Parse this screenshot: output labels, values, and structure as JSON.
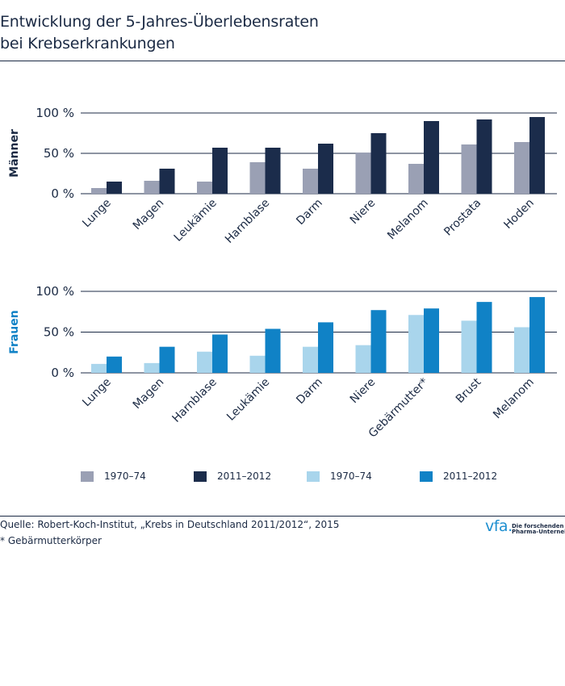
{
  "title": {
    "line1": "Entwicklung der 5-Jahres-Überlebensraten",
    "line2": "bei Krebserkrankungen"
  },
  "colors": {
    "men_1970": "#9aa0b4",
    "men_2011": "#1b2c4b",
    "women_1970": "#a9d5ec",
    "women_2011": "#1082c6",
    "text": "#1b2a44",
    "women_label": "#1082c6"
  },
  "chart_data": [
    {
      "type": "bar",
      "panel_label": "Männer",
      "categories": [
        "Lunge",
        "Magen",
        "Leukämie",
        "Harnblase",
        "Darm",
        "Niere",
        "Melanom",
        "Prostata",
        "Hoden"
      ],
      "series": [
        {
          "name": "1970–74",
          "values": [
            7,
            16,
            15,
            39,
            31,
            51,
            37,
            61,
            64
          ]
        },
        {
          "name": "2011–2012",
          "values": [
            15,
            31,
            57,
            57,
            62,
            75,
            90,
            92,
            95
          ]
        }
      ],
      "ylim": [
        0,
        100
      ],
      "yticks": [
        0,
        50,
        100
      ],
      "ytick_labels": [
        "0 %",
        "50 %",
        "100 %"
      ],
      "grid": true
    },
    {
      "type": "bar",
      "panel_label": "Frauen",
      "categories": [
        "Lunge",
        "Magen",
        "Harnblase",
        "Leukämie",
        "Darm",
        "Niere",
        "Gebärmutter*",
        "Brust",
        "Melanom"
      ],
      "series": [
        {
          "name": "1970–74",
          "values": [
            11,
            12,
            26,
            21,
            32,
            34,
            71,
            64,
            56
          ]
        },
        {
          "name": "2011–2012",
          "values": [
            20,
            32,
            47,
            54,
            62,
            77,
            79,
            87,
            93
          ]
        }
      ],
      "ylim": [
        0,
        100
      ],
      "yticks": [
        0,
        50,
        100
      ],
      "ytick_labels": [
        "0 %",
        "50 %",
        "100 %"
      ],
      "grid": true
    }
  ],
  "legend": [
    {
      "label": "1970–74",
      "color": "#9aa0b4"
    },
    {
      "label": "2011–2012",
      "color": "#1b2c4b"
    },
    {
      "label": "1970–74",
      "color": "#a9d5ec"
    },
    {
      "label": "2011–2012",
      "color": "#1082c6"
    }
  ],
  "source": "Quelle: Robert-Koch-Institut, „Krebs in Deutschland 2011/2012“, 2015",
  "footnote": "* Gebärmutterkörper",
  "logo": {
    "mark": "vfa.",
    "line1": "Die forschenden",
    "line2": "Pharma-Unternehmen"
  }
}
